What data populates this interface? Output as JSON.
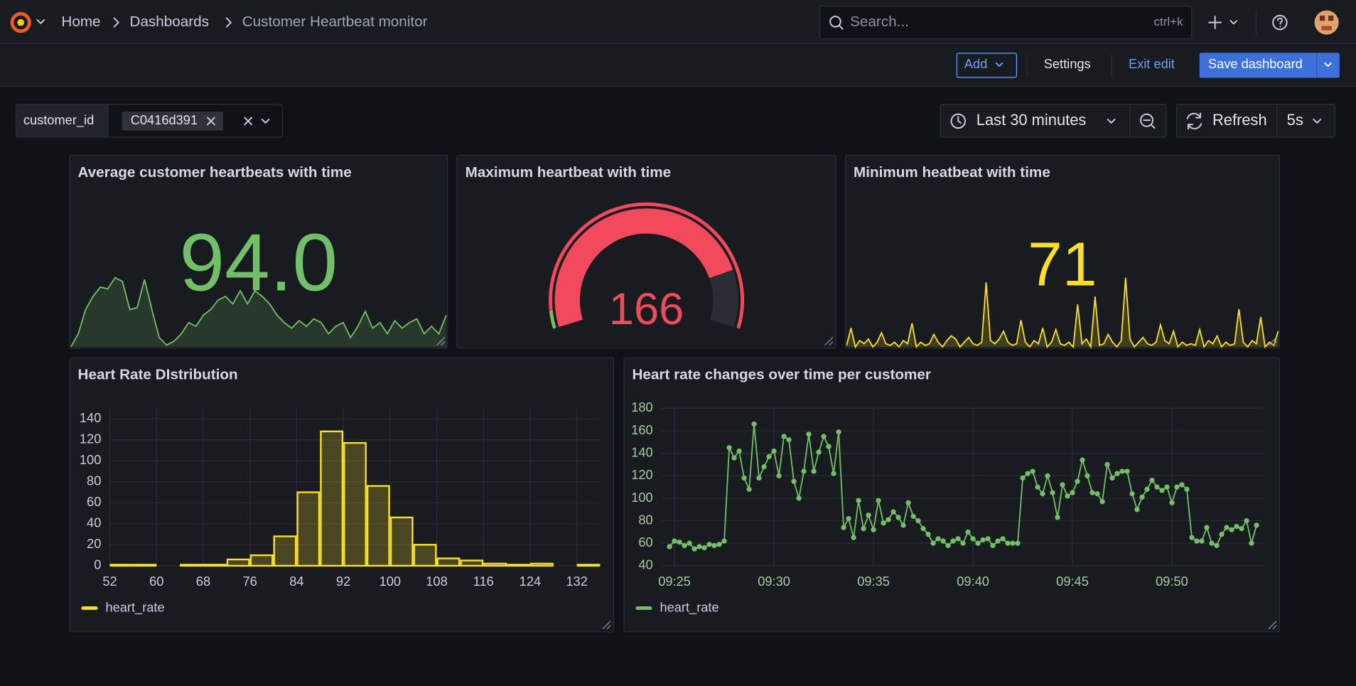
{
  "header": {
    "breadcrumbs": [
      "Home",
      "Dashboards",
      "Customer Heartbeat monitor"
    ],
    "search_placeholder": "Search...",
    "search_shortcut": "ctrl+k"
  },
  "toolbar": {
    "add": "Add",
    "settings": "Settings",
    "exit_edit": "Exit edit",
    "save": "Save dashboard"
  },
  "variables": {
    "label": "customer_id",
    "value": "C0416d391"
  },
  "time_controls": {
    "range": "Last 30 minutes",
    "refresh": "Refresh",
    "interval": "5s"
  },
  "chart_data": [
    {
      "type": "stat",
      "title": "Average customer heartbeats with time",
      "value": 94,
      "value_label": "94.0",
      "color": "#73bf69",
      "sparkline": [
        75,
        82,
        95,
        102,
        107,
        106,
        112,
        110,
        95,
        96,
        111,
        95,
        80,
        76,
        78,
        82,
        88,
        86,
        92,
        95,
        100,
        102,
        98,
        105,
        98,
        105,
        102,
        98,
        92,
        88,
        85,
        89,
        86,
        90,
        88,
        82,
        86,
        88,
        80,
        86,
        94,
        85,
        88,
        82,
        89,
        85,
        88,
        90,
        82,
        86,
        82,
        92
      ]
    },
    {
      "type": "gauge",
      "title": "Maximum heartbeat with time",
      "value": 166,
      "ylim": [
        0,
        200
      ],
      "thresholds": [
        {
          "value": 0,
          "color": "#73bf69"
        },
        {
          "value": 10,
          "color": "#f2495c"
        }
      ]
    },
    {
      "type": "stat",
      "title": "Minimum heatbeat with time",
      "value": 71,
      "color": "#fade2a",
      "sparkline": [
        61,
        72,
        60,
        64,
        62,
        65,
        60,
        63,
        69,
        62,
        61,
        63,
        60,
        64,
        62,
        75,
        60,
        63,
        61,
        62,
        68,
        63,
        60,
        64,
        67,
        65,
        60,
        63,
        66,
        62,
        61,
        63,
        101,
        64,
        62,
        65,
        70,
        63,
        61,
        62,
        77,
        63,
        60,
        64,
        62,
        72,
        60,
        63,
        71,
        62,
        61,
        63,
        60,
        87,
        62,
        65,
        60,
        92,
        61,
        62,
        68,
        63,
        60,
        64,
        104,
        65,
        60,
        63,
        66,
        62,
        61,
        63,
        74,
        64,
        62,
        70,
        60,
        63,
        61,
        62,
        61,
        71,
        60,
        64,
        62,
        67,
        60,
        63,
        61,
        62,
        84,
        63,
        60,
        64,
        62,
        79,
        60,
        63,
        61,
        70
      ]
    },
    {
      "type": "histogram",
      "title": "Heart Rate DIstribution",
      "bins": [
        52,
        56,
        60,
        64,
        68,
        72,
        76,
        80,
        84,
        88,
        92,
        96,
        100,
        104,
        108,
        112,
        116,
        120,
        124,
        128,
        132,
        136
      ],
      "series": [
        {
          "name": "heart_rate",
          "color": "#fade2a",
          "values": [
            1,
            1,
            0,
            1,
            1,
            6,
            10,
            28,
            70,
            128,
            117,
            76,
            46,
            20,
            7,
            5,
            2,
            1,
            2,
            0,
            1
          ]
        }
      ],
      "xlim": [
        52,
        136
      ],
      "xticks": [
        52,
        60,
        68,
        76,
        84,
        92,
        100,
        108,
        116,
        124,
        132
      ],
      "ylim": [
        0,
        150
      ],
      "yticks": [
        0,
        20,
        40,
        60,
        80,
        100,
        120,
        140
      ],
      "grid": true
    },
    {
      "type": "line",
      "title": "Heart rate changes over time per customer",
      "x": [
        564.75,
        565,
        565.25,
        565.5,
        565.75,
        566,
        566.25,
        566.5,
        566.75,
        567,
        567.25,
        567.5,
        567.75,
        568,
        568.25,
        568.5,
        568.75,
        569,
        569.25,
        569.5,
        569.75,
        570,
        570.25,
        570.5,
        570.75,
        571,
        571.25,
        571.5,
        571.75,
        572,
        572.25,
        572.5,
        572.75,
        573,
        573.25,
        573.5,
        573.75,
        574,
        574.25,
        574.5,
        574.75,
        575,
        575.25,
        575.5,
        575.75,
        576,
        576.25,
        576.5,
        576.75,
        577,
        577.25,
        577.5,
        577.75,
        578,
        578.25,
        578.5,
        578.75,
        579,
        579.25,
        579.5,
        579.75,
        580,
        580.25,
        580.5,
        580.75,
        581,
        581.25,
        581.5,
        581.75,
        582,
        582.25,
        582.5,
        582.75,
        583,
        583.25,
        583.5,
        583.75,
        584,
        584.25,
        584.5,
        584.75,
        585,
        585.25,
        585.5,
        585.75,
        586,
        586.25,
        586.5,
        586.75,
        587,
        587.25,
        587.5,
        587.75,
        588,
        588.25,
        588.5,
        588.75,
        589,
        589.25,
        589.5,
        589.75,
        590,
        590.25,
        590.5,
        590.75,
        591,
        591.25,
        591.5,
        591.75,
        592,
        592.25,
        592.5,
        592.75,
        593,
        593.25,
        593.5,
        593.75,
        594,
        594.25
      ],
      "series": [
        {
          "name": "heart_rate",
          "color": "#73bf69",
          "values": [
            57,
            62,
            61,
            58,
            60,
            55,
            57,
            56,
            59,
            58,
            59,
            62,
            145,
            136,
            142,
            118,
            108,
            166,
            118,
            128,
            137,
            142,
            120,
            155,
            152,
            115,
            100,
            124,
            157,
            124,
            141,
            155,
            146,
            122,
            159,
            74,
            82,
            65,
            98,
            73,
            85,
            72,
            98,
            78,
            81,
            88,
            83,
            76,
            96,
            84,
            80,
            73,
            68,
            60,
            64,
            62,
            58,
            62,
            64,
            60,
            70,
            64,
            60,
            63,
            64,
            58,
            62,
            64,
            60,
            60,
            60,
            118,
            122,
            124,
            110,
            104,
            120,
            105,
            83,
            112,
            102,
            105,
            115,
            134,
            120,
            105,
            104,
            97,
            130,
            118,
            122,
            124,
            124,
            104,
            90,
            101,
            108,
            116,
            110,
            107,
            110,
            96,
            110,
            112,
            108,
            65,
            62,
            62,
            74,
            60,
            58,
            68,
            74,
            72,
            75,
            73,
            80,
            60,
            76
          ]
        }
      ],
      "xlim": [
        564.35,
        594.6
      ],
      "xticks": [
        {
          "value": 565,
          "label": "09:25"
        },
        {
          "value": 570,
          "label": "09:30"
        },
        {
          "value": 575,
          "label": "09:35"
        },
        {
          "value": 580,
          "label": "09:40"
        },
        {
          "value": 585,
          "label": "09:45"
        },
        {
          "value": 590,
          "label": "09:50"
        }
      ],
      "ylim": [
        40,
        180
      ],
      "yticks": [
        40,
        60,
        80,
        100,
        120,
        140,
        160,
        180
      ],
      "grid": true
    }
  ]
}
